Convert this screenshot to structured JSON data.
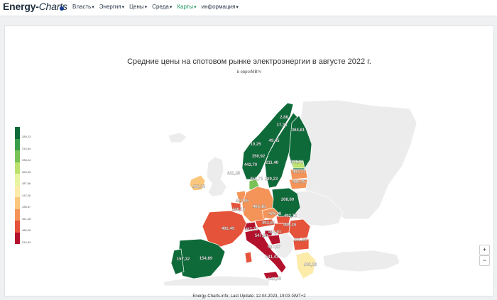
{
  "header": {
    "logo_part1": "Energy-",
    "logo_part2": "Charts",
    "nav": [
      {
        "label": "Власть",
        "active": false
      },
      {
        "label": "Энергия",
        "active": false
      },
      {
        "label": "Цены",
        "active": false
      },
      {
        "label": "Среда",
        "active": false
      },
      {
        "label": "Карты",
        "active": true
      },
      {
        "label": "информация",
        "active": false
      }
    ]
  },
  "map": {
    "title": "Средние цены на спотовом рынке электроэнергии в августе 2022 г.",
    "subtitle": "в евро/МВтч",
    "footer": "Energy-Charts.info; Last Update: 12.04.2023, 19:03 GMT+2",
    "legend": [
      {
        "label": "289,23",
        "color": "#0e6b39"
      },
      {
        "label": "313,84",
        "color": "#3a9e4c"
      },
      {
        "label": "338,44",
        "color": "#79c257"
      },
      {
        "label": "363,05",
        "color": "#bde270"
      },
      {
        "label": "387,66",
        "color": "#e8f4a0"
      },
      {
        "label": "412,26",
        "color": "#fdebaa"
      },
      {
        "label": "436,87",
        "color": "#fbc77c"
      },
      {
        "label": "461,48",
        "color": "#f59458"
      },
      {
        "label": "486,08",
        "color": "#e5533a"
      },
      {
        "label": "510,69",
        "color": "#b3112c"
      }
    ],
    "regions": [
      {
        "label": "2,88"
      },
      {
        "label": "17,33"
      },
      {
        "label": "364,81"
      },
      {
        "label": "49,45"
      },
      {
        "label": "19,25"
      },
      {
        "label": "350,92"
      },
      {
        "label": "211,40"
      },
      {
        "label": "442,70"
      },
      {
        "label": "361,81"
      },
      {
        "label": "407,77"
      },
      {
        "label": "441,49"
      },
      {
        "label": "456,75"
      },
      {
        "label": "289,23"
      },
      {
        "label": "480,45"
      },
      {
        "label": "432,33"
      },
      {
        "label": "447,06"
      },
      {
        "label": "268,69"
      },
      {
        "label": "448,13"
      },
      {
        "label": "465,18"
      },
      {
        "label": "476,38"
      },
      {
        "label": "492,12"
      },
      {
        "label": "493,84"
      },
      {
        "label": "495,29"
      },
      {
        "label": "492,49"
      },
      {
        "label": "487,72"
      },
      {
        "label": "494,01"
      },
      {
        "label": "547,60"
      },
      {
        "label": "491,96"
      },
      {
        "label": "547,57"
      },
      {
        "label": "541,43"
      },
      {
        "label": "157,32"
      },
      {
        "label": "154,89"
      },
      {
        "label": "436,38"
      },
      {
        "label": "543,85"
      }
    ]
  },
  "controls": {
    "zoom_in": "+",
    "zoom_out": "−"
  }
}
